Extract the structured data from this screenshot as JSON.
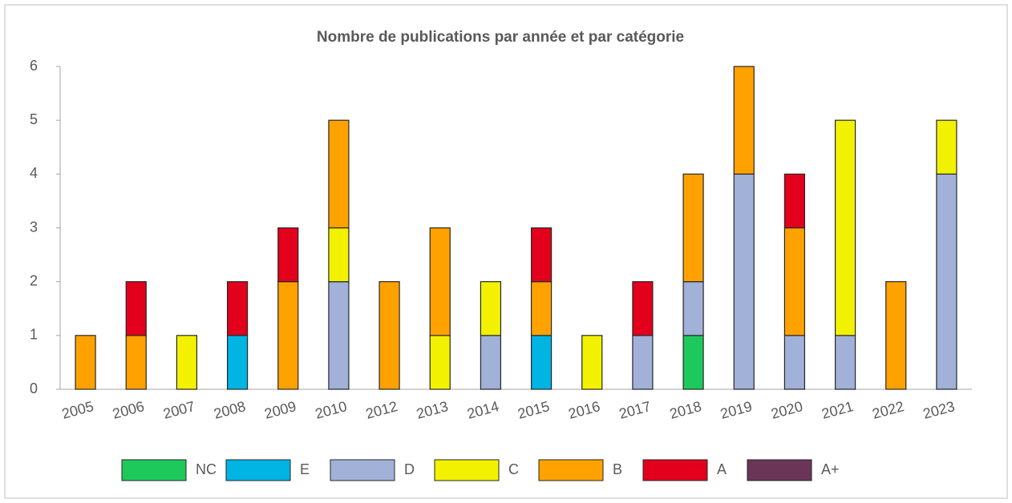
{
  "chart_data": {
    "type": "bar",
    "stacked": true,
    "title": "Nombre de publications par année et par catégorie",
    "categories": [
      "2005",
      "2006",
      "2007",
      "2008",
      "2009",
      "2010",
      "2012",
      "2013",
      "2014",
      "2015",
      "2016",
      "2017",
      "2018",
      "2019",
      "2020",
      "2021",
      "2022",
      "2023"
    ],
    "series": [
      {
        "name": "NC",
        "color": "#1ec95b",
        "values": [
          0,
          0,
          0,
          0,
          0,
          0,
          0,
          0,
          0,
          0,
          0,
          0,
          1,
          0,
          0,
          0,
          0,
          0
        ]
      },
      {
        "name": "E",
        "color": "#00b4e4",
        "values": [
          0,
          0,
          0,
          1,
          0,
          0,
          0,
          0,
          0,
          1,
          0,
          0,
          0,
          0,
          0,
          0,
          0,
          0
        ]
      },
      {
        "name": "D",
        "color": "#a1b1d8",
        "values": [
          0,
          0,
          0,
          0,
          0,
          2,
          0,
          0,
          1,
          0,
          0,
          1,
          1,
          4,
          1,
          1,
          0,
          4
        ]
      },
      {
        "name": "C",
        "color": "#f2f200",
        "values": [
          0,
          0,
          1,
          0,
          0,
          1,
          0,
          1,
          1,
          0,
          1,
          0,
          0,
          0,
          0,
          4,
          0,
          1
        ]
      },
      {
        "name": "B",
        "color": "#ffa200",
        "values": [
          1,
          1,
          0,
          0,
          2,
          2,
          2,
          2,
          0,
          1,
          0,
          0,
          2,
          2,
          2,
          0,
          2,
          0
        ]
      },
      {
        "name": "A",
        "color": "#e2001c",
        "values": [
          0,
          1,
          0,
          1,
          1,
          0,
          0,
          0,
          0,
          1,
          0,
          1,
          0,
          0,
          1,
          0,
          0,
          0
        ]
      },
      {
        "name": "A+",
        "color": "#6b3558",
        "values": [
          0,
          0,
          0,
          0,
          0,
          0,
          0,
          0,
          0,
          0,
          0,
          0,
          0,
          0,
          0,
          0,
          0,
          0
        ]
      }
    ],
    "ylim": [
      0,
      6
    ],
    "yticks": [
      0,
      1,
      2,
      3,
      4,
      5,
      6
    ],
    "legend": "bottom"
  }
}
